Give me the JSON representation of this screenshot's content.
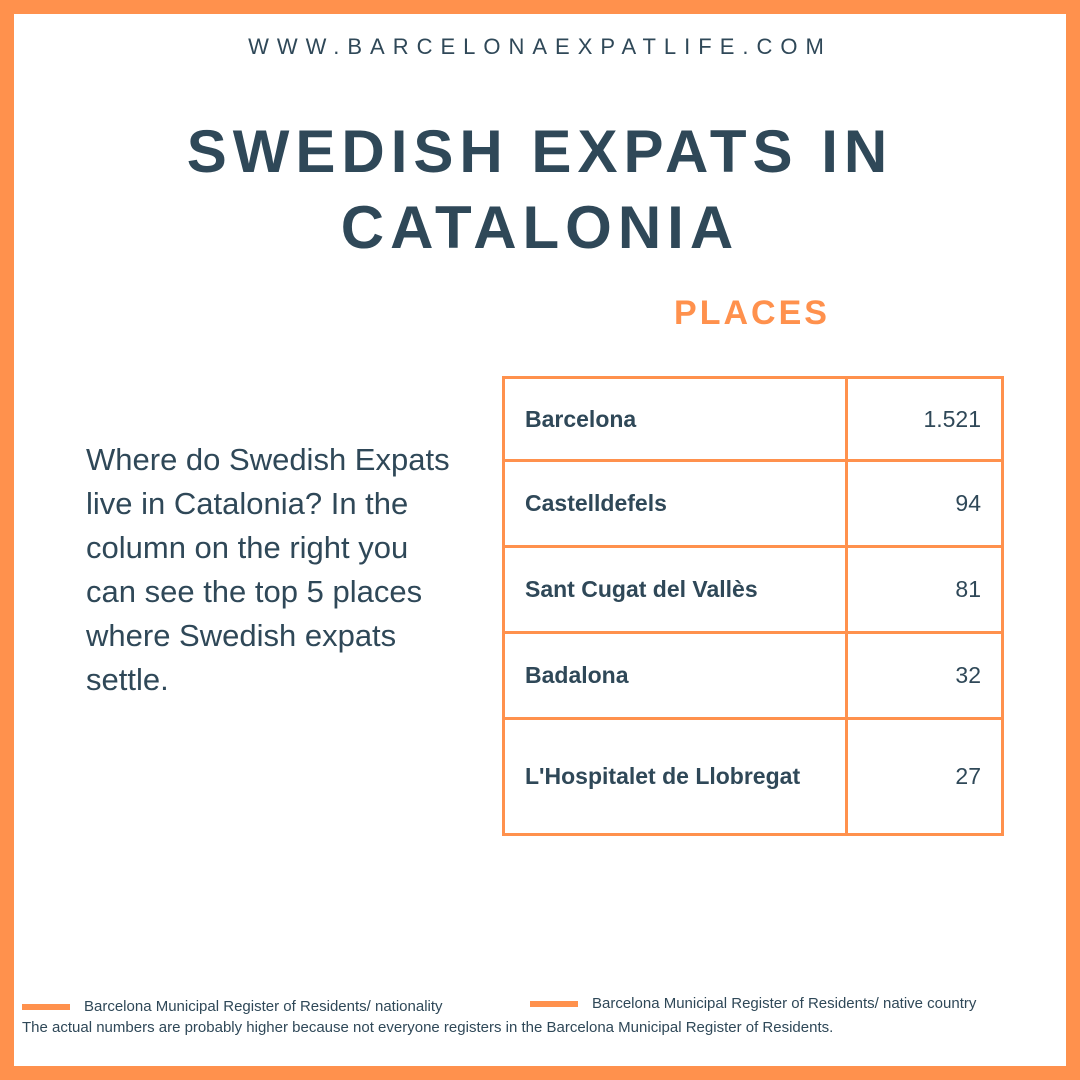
{
  "site_url": "WWW.BARCELONAEXPATLIFE.COM",
  "title": "SWEDISH EXPATS IN CATALONIA",
  "places_heading": "PLACES",
  "intro_text": "Where do Swedish Expats live in Catalonia? In the column on the right you can see the top 5 places where Swedish expats settle.",
  "places": [
    {
      "name": "Barcelona",
      "count": "1.521"
    },
    {
      "name": "Castelldefels",
      "count": "94"
    },
    {
      "name": "Sant Cugat del Vallès",
      "count": "81"
    },
    {
      "name": "Badalona",
      "count": "32"
    },
    {
      "name": "L'Hospitalet de Llobregat",
      "count": "27"
    }
  ],
  "legend": [
    {
      "label": "Barcelona Municipal Register of Residents/ nationality"
    },
    {
      "label": "Barcelona Municipal Register of Residents/  native country"
    }
  ],
  "footnote": "The actual numbers are probably higher because not everyone registers in the Barcelona Municipal Register of Residents.",
  "colors": {
    "accent": "#ff914d",
    "text": "#2f4858",
    "background": "#ffffff"
  }
}
